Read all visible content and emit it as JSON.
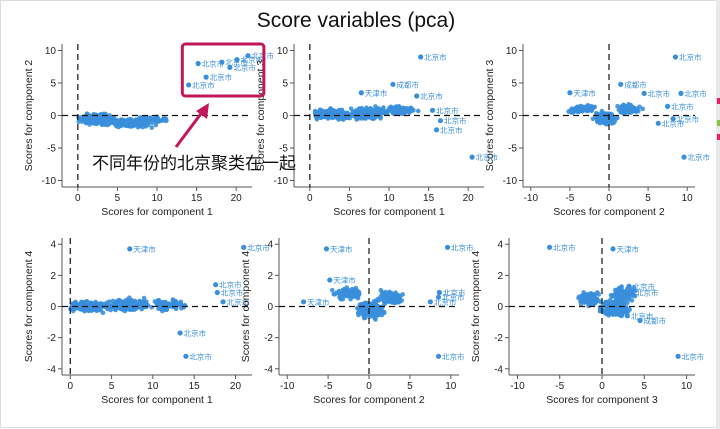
{
  "figure": {
    "title": "Score variables (pca)",
    "annotation": "不同年份的北京聚类在一起",
    "colors": {
      "point": "#3a8fdc",
      "label": "#3a8fdc",
      "highlight": "#c2185b",
      "axis": "#555555",
      "refline": "#111111",
      "grid": "#eeeeee"
    }
  },
  "chart_data": [
    {
      "type": "scatter",
      "xlabel": "Scores for component 1",
      "ylabel": "Scores for component 2",
      "xlim": [
        -2,
        22
      ],
      "ylim": [
        -11,
        11
      ],
      "xticks": [
        "0",
        "5",
        "10",
        "15",
        "20"
      ],
      "yticks": [
        "-10",
        "-5",
        "0",
        "5",
        "10"
      ],
      "grid": false,
      "reference_lines": {
        "x": 0,
        "y": 0
      },
      "labeled_points": [
        {
          "x": 18.2,
          "y": 8.2,
          "label": "北京市"
        },
        {
          "x": 20.1,
          "y": 8.6,
          "label": "北京市"
        },
        {
          "x": 21.5,
          "y": 9.2,
          "label": "北京市"
        },
        {
          "x": 19.2,
          "y": 7.4,
          "label": "北京市"
        },
        {
          "x": 15.2,
          "y": 8.0,
          "label": "北京市"
        },
        {
          "x": 16.2,
          "y": 5.9,
          "label": "北京市"
        },
        {
          "x": 14.0,
          "y": 4.7,
          "label": "北京市"
        }
      ]
    },
    {
      "type": "scatter",
      "xlabel": "Scores for component 1",
      "ylabel": "Scores for component 3",
      "xlim": [
        -2,
        22
      ],
      "ylim": [
        -11,
        11
      ],
      "xticks": [
        "0",
        "5",
        "10",
        "15",
        "20"
      ],
      "yticks": [
        "-10",
        "-5",
        "0",
        "5",
        "10"
      ],
      "grid": false,
      "reference_lines": {
        "x": 0,
        "y": 0
      },
      "labeled_points": [
        {
          "x": 14.0,
          "y": 9.0,
          "label": "北京市"
        },
        {
          "x": 10.5,
          "y": 4.8,
          "label": "成都市"
        },
        {
          "x": 6.5,
          "y": 3.5,
          "label": "天津市"
        },
        {
          "x": 13.5,
          "y": 3.0,
          "label": "北京市"
        },
        {
          "x": 15.5,
          "y": 0.8,
          "label": "北京市"
        },
        {
          "x": 16.5,
          "y": -0.8,
          "label": "北京市"
        },
        {
          "x": 16.0,
          "y": -2.2,
          "label": "北京市"
        },
        {
          "x": 20.5,
          "y": -6.4,
          "label": "北京市"
        }
      ]
    },
    {
      "type": "scatter",
      "xlabel": "Scores for component 2",
      "ylabel": "Scores for component 3",
      "xlim": [
        -11,
        11
      ],
      "ylim": [
        -11,
        11
      ],
      "xticks": [
        "-10",
        "-5",
        "0",
        "5",
        "10"
      ],
      "yticks": [
        "-10",
        "-5",
        "0",
        "5",
        "10"
      ],
      "grid": false,
      "reference_lines": {
        "x": 0,
        "y": 0
      },
      "labeled_points": [
        {
          "x": 8.5,
          "y": 9.0,
          "label": "北京市"
        },
        {
          "x": 1.5,
          "y": 4.8,
          "label": "成都市"
        },
        {
          "x": -5.0,
          "y": 3.5,
          "label": "天津市"
        },
        {
          "x": 4.5,
          "y": 3.4,
          "label": "北京市"
        },
        {
          "x": 9.2,
          "y": 3.4,
          "label": "北京市"
        },
        {
          "x": 7.5,
          "y": 1.4,
          "label": "北京市"
        },
        {
          "x": 8.2,
          "y": -0.5,
          "label": "北京市"
        },
        {
          "x": 6.3,
          "y": -1.2,
          "label": "北京市"
        },
        {
          "x": 9.6,
          "y": -6.4,
          "label": "北京市"
        }
      ]
    },
    {
      "type": "scatter",
      "xlabel": "Scores for component 1",
      "ylabel": "Scores for component 4",
      "xlim": [
        -1,
        22
      ],
      "ylim": [
        -4.4,
        4.4
      ],
      "xticks": [
        "0",
        "5",
        "10",
        "15",
        "20"
      ],
      "yticks": [
        "-4",
        "-2",
        "0",
        "2",
        "4"
      ],
      "grid": false,
      "reference_lines": {
        "x": 0,
        "y": 0
      },
      "labeled_points": [
        {
          "x": 7.2,
          "y": 3.7,
          "label": "天津市"
        },
        {
          "x": 21.0,
          "y": 3.8,
          "label": "北京市"
        },
        {
          "x": 17.6,
          "y": 1.4,
          "label": "北京市"
        },
        {
          "x": 17.8,
          "y": 0.9,
          "label": "北京市"
        },
        {
          "x": 18.5,
          "y": 0.3,
          "label": "北京市"
        },
        {
          "x": 13.3,
          "y": -1.7,
          "label": "北京市"
        },
        {
          "x": 14.0,
          "y": -3.2,
          "label": "北京市"
        }
      ]
    },
    {
      "type": "scatter",
      "xlabel": "Scores for component 2",
      "ylabel": "Scores for component 4",
      "xlim": [
        -11,
        11
      ],
      "ylim": [
        -4.4,
        4.4
      ],
      "xticks": [
        "-10",
        "-5",
        "0",
        "5",
        "10"
      ],
      "yticks": [
        "-4",
        "-2",
        "0",
        "2",
        "4"
      ],
      "grid": false,
      "reference_lines": {
        "x": 0,
        "y": 0
      },
      "labeled_points": [
        {
          "x": -5.2,
          "y": 3.7,
          "label": "天津市"
        },
        {
          "x": 9.6,
          "y": 3.8,
          "label": "北京市"
        },
        {
          "x": -4.8,
          "y": 1.7,
          "label": "天津市"
        },
        {
          "x": 8.6,
          "y": 0.9,
          "label": "北京市"
        },
        {
          "x": 8.5,
          "y": 0.6,
          "label": "北京市"
        },
        {
          "x": 7.5,
          "y": 0.3,
          "label": "北京市"
        },
        {
          "x": -8.0,
          "y": 0.3,
          "label": "天津市"
        },
        {
          "x": 8.5,
          "y": -3.2,
          "label": "北京市"
        }
      ]
    },
    {
      "type": "scatter",
      "xlabel": "Scores for component 3",
      "ylabel": "Scores for component 4",
      "xlim": [
        -11,
        11
      ],
      "ylim": [
        -4.4,
        4.4
      ],
      "xticks": [
        "-10",
        "-5",
        "0",
        "5",
        "10"
      ],
      "yticks": [
        "-4",
        "-2",
        "0",
        "2",
        "4"
      ],
      "grid": false,
      "reference_lines": {
        "x": 0,
        "y": 0
      },
      "labeled_points": [
        {
          "x": -6.2,
          "y": 3.8,
          "label": "北京市"
        },
        {
          "x": 1.3,
          "y": 3.7,
          "label": "天津市"
        },
        {
          "x": 3.2,
          "y": 1.3,
          "label": "北京市"
        },
        {
          "x": 3.6,
          "y": 0.9,
          "label": "北京市"
        },
        {
          "x": 3.0,
          "y": -0.6,
          "label": "北京市"
        },
        {
          "x": 4.5,
          "y": -0.9,
          "label": "成都市"
        },
        {
          "x": 9.0,
          "y": -3.2,
          "label": "北京市"
        }
      ]
    }
  ]
}
